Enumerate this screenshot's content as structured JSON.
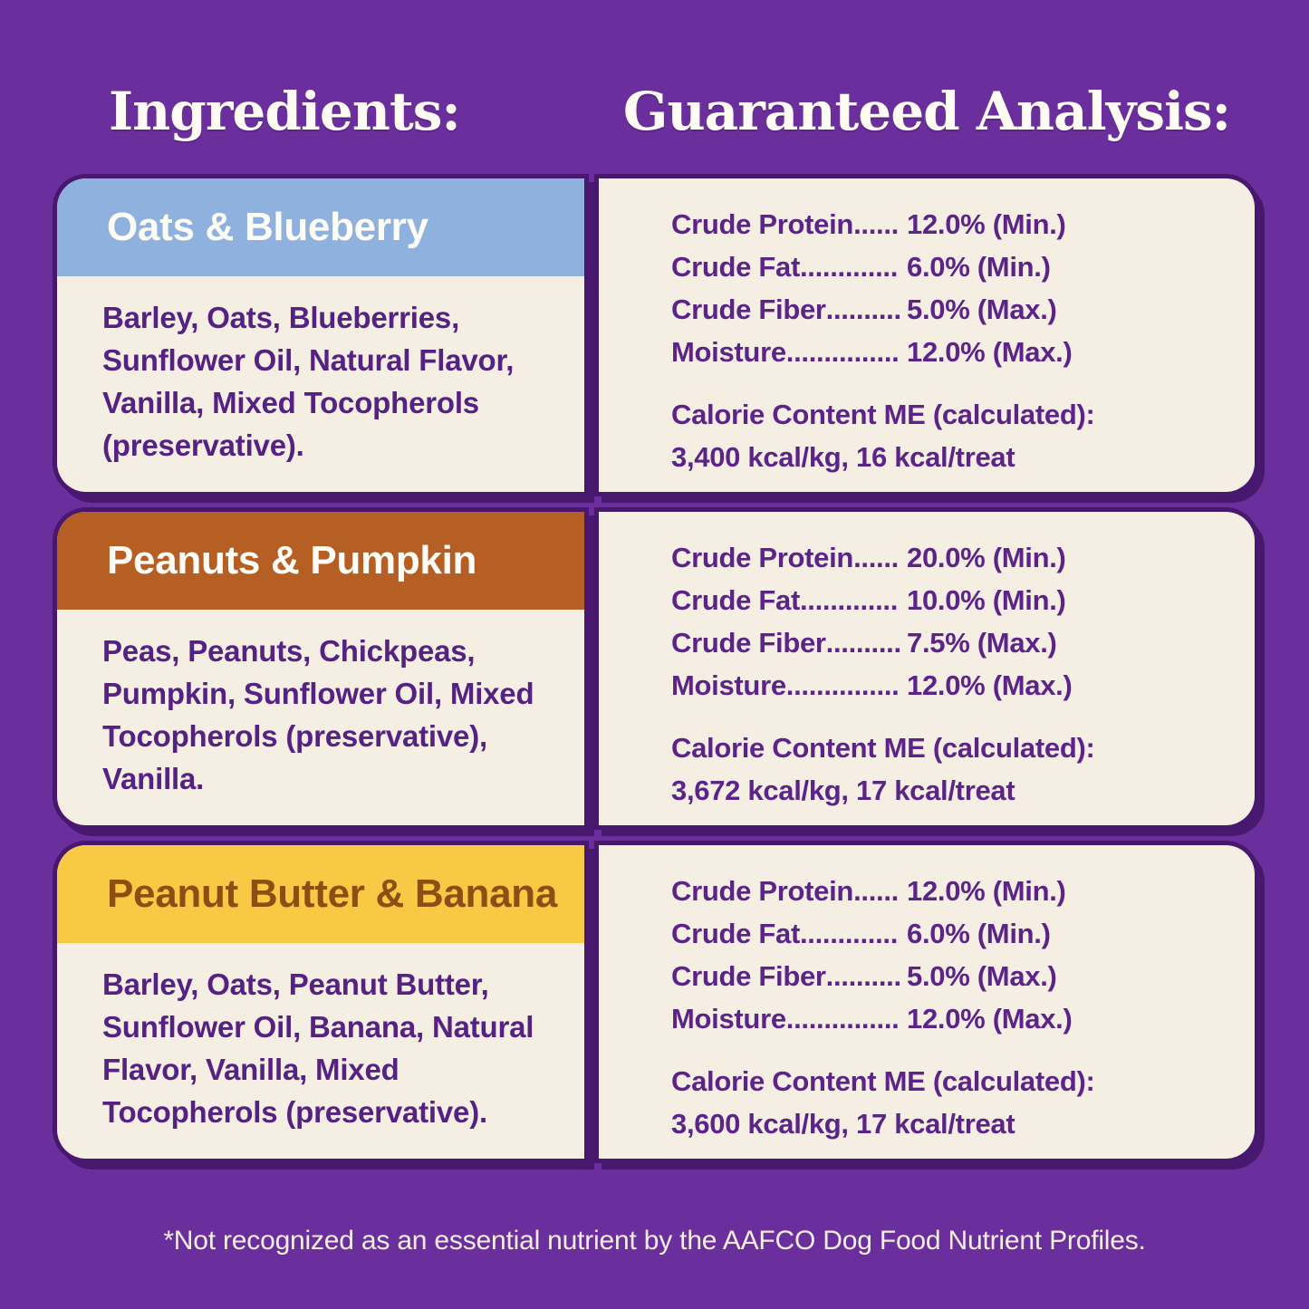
{
  "colors": {
    "background": "#6b2f9d",
    "card_outline": "#47186e",
    "card_background": "#f4efe2",
    "body_text": "#552284",
    "analysis_text": "#5c2489",
    "footnote_text": "#f3eee1"
  },
  "headers": {
    "left": "Ingredients:",
    "right": "Guaranteed Analysis:"
  },
  "flavors": [
    {
      "name": "Oats & Blueberry",
      "band_color": "#8fb1de",
      "title_color": "#fdfcf7",
      "ingredients": "Barley, Oats, Blueberries, Sunflower Oil, Natural Flavor, Vanilla, Mixed Tocopherols (preservative).",
      "analysis": [
        {
          "label": "Crude Protein",
          "value": "12.0% (Min.)"
        },
        {
          "label": "Crude Fat",
          "value": "6.0% (Min.)"
        },
        {
          "label": "Crude Fiber",
          "value": "5.0% (Max.)"
        },
        {
          "label": "Moisture",
          "value": "12.0% (Max.)"
        }
      ],
      "calorie_heading": "Calorie Content ME (calculated):",
      "calorie_value": "3,400 kcal/kg, 16 kcal/treat"
    },
    {
      "name": "Peanuts & Pumpkin",
      "band_color": "#b65f24",
      "title_color": "#fdfcf7",
      "ingredients": "Peas, Peanuts, Chickpeas, Pumpkin, Sunflower Oil, Mixed Tocopherols (preservative), Vanilla.",
      "analysis": [
        {
          "label": "Crude Protein",
          "value": "20.0% (Min.)"
        },
        {
          "label": "Crude Fat",
          "value": "10.0% (Min.)"
        },
        {
          "label": "Crude Fiber",
          "value": "7.5% (Max.)"
        },
        {
          "label": "Moisture",
          "value": "12.0% (Max.)"
        }
      ],
      "calorie_heading": "Calorie Content ME (calculated):",
      "calorie_value": "3,672 kcal/kg, 17 kcal/treat"
    },
    {
      "name": "Peanut Butter & Banana",
      "band_color": "#f8c945",
      "title_color": "#8e4d13",
      "ingredients": "Barley, Oats, Peanut Butter, Sunflower Oil, Banana, Natural Flavor, Vanilla, Mixed Tocopherols (preservative).",
      "analysis": [
        {
          "label": "Crude Protein",
          "value": "12.0% (Min.)"
        },
        {
          "label": "Crude Fat",
          "value": "6.0% (Min.)"
        },
        {
          "label": "Crude Fiber",
          "value": "5.0% (Max.)"
        },
        {
          "label": "Moisture",
          "value": "12.0% (Max.)"
        }
      ],
      "calorie_heading": "Calorie Content ME (calculated):",
      "calorie_value": "3,600 kcal/kg, 17 kcal/treat"
    }
  ],
  "footnote": "*Not recognized as an essential nutrient by the AAFCO Dog Food Nutrient Profiles."
}
